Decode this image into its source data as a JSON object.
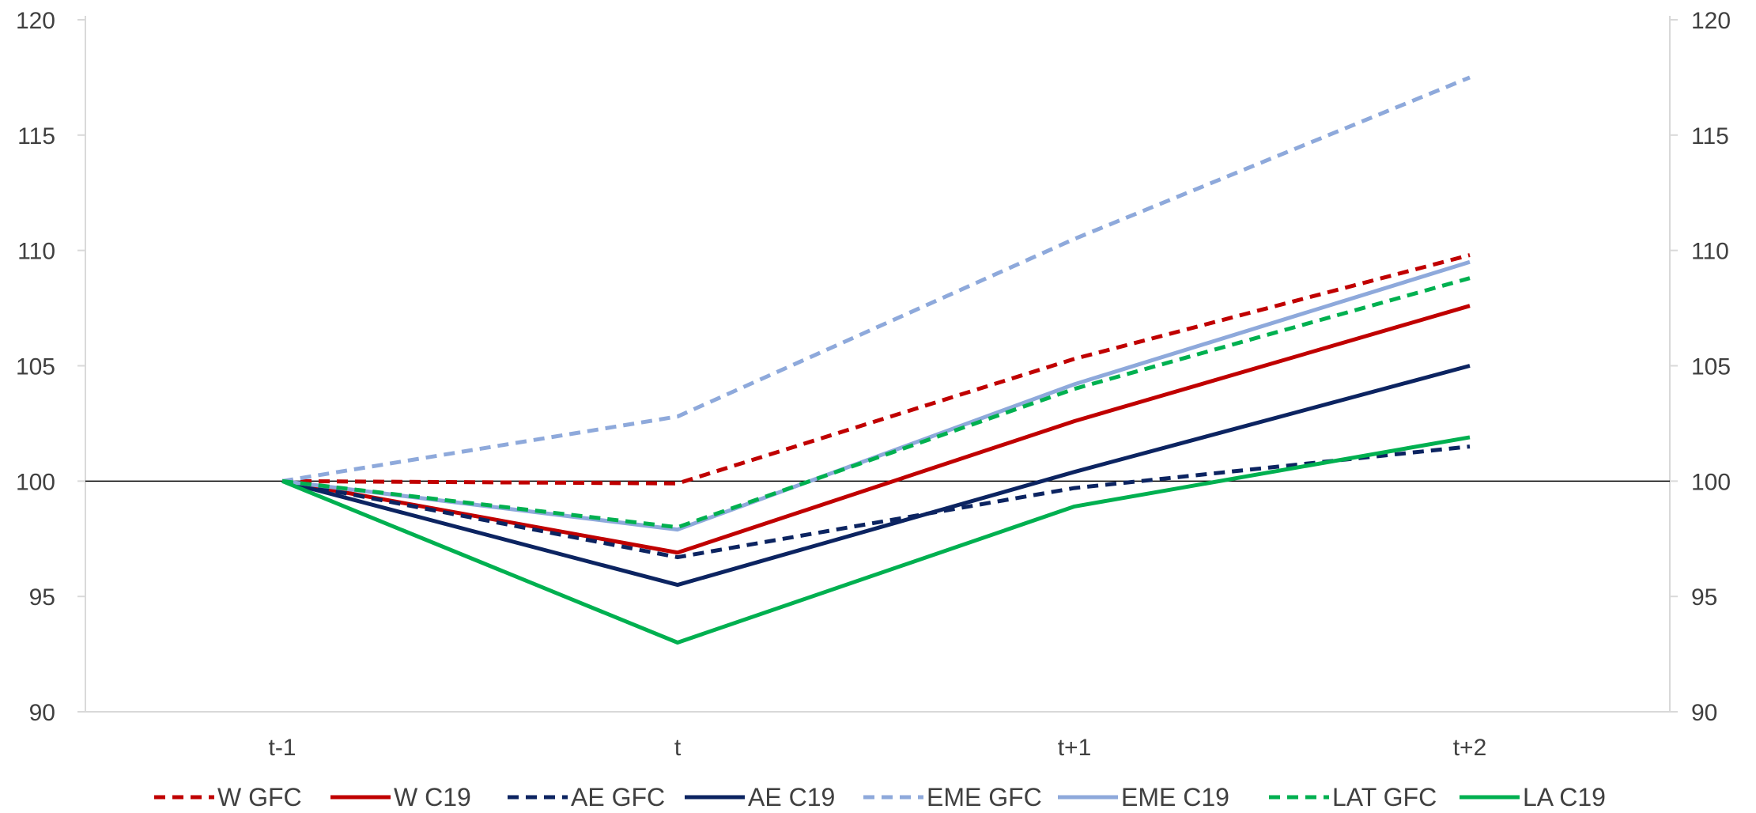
{
  "chart_data": {
    "type": "line",
    "title": "",
    "xlabel": "",
    "ylabel": "",
    "categories": [
      "t-1",
      "t",
      "t+1",
      "t+2"
    ],
    "ylim": [
      90,
      120
    ],
    "y_ticks": [
      90,
      95,
      100,
      105,
      110,
      115,
      120
    ],
    "y_ticks_labels": [
      "90",
      "95",
      "100",
      "105",
      "110",
      "115",
      "120"
    ],
    "secondary_axis": true,
    "reference_line": 100,
    "grid": false,
    "legend_position": "bottom",
    "series": [
      {
        "name": "W GFC",
        "values": [
          100,
          99.9,
          105.3,
          109.8
        ],
        "color": "#C00000",
        "dashed": true
      },
      {
        "name": "W C19",
        "values": [
          100,
          96.9,
          102.6,
          107.6
        ],
        "color": "#C00000",
        "dashed": false
      },
      {
        "name": "AE GFC",
        "values": [
          100,
          96.7,
          99.7,
          101.5
        ],
        "color": "#0C2461",
        "dashed": true
      },
      {
        "name": "AE C19",
        "values": [
          100,
          95.5,
          100.4,
          105.0
        ],
        "color": "#0C2461",
        "dashed": false
      },
      {
        "name": "EME GFC",
        "values": [
          100,
          102.8,
          110.5,
          117.5
        ],
        "color": "#8EA9DB",
        "dashed": true
      },
      {
        "name": "EME C19",
        "values": [
          100,
          97.9,
          104.2,
          109.5
        ],
        "color": "#8EA9DB",
        "dashed": false
      },
      {
        "name": "LAT GFC",
        "values": [
          100,
          98.0,
          104.0,
          108.8
        ],
        "color": "#00B050",
        "dashed": true
      },
      {
        "name": "LA C19",
        "values": [
          100,
          93.0,
          98.9,
          101.9
        ],
        "color": "#00B050",
        "dashed": false
      }
    ]
  }
}
